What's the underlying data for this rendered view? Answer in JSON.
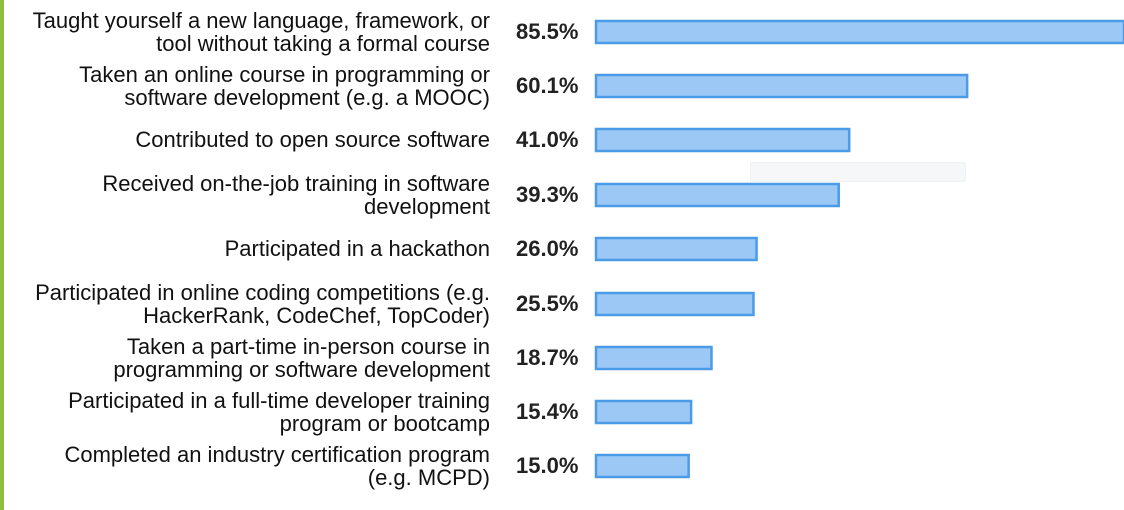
{
  "chart_data": {
    "type": "bar",
    "orientation": "horizontal",
    "value_suffix": "%",
    "xlim": [
      0,
      85.5
    ],
    "categories": [
      [
        "Taught yourself a new language, framework, or",
        "tool without taking a formal course"
      ],
      [
        "Taken an online course in programming or",
        "software development (e.g. a MOOC)"
      ],
      [
        "Contributed to open source software"
      ],
      [
        "Received on-the-job training in software",
        "development"
      ],
      [
        "Participated in a hackathon"
      ],
      [
        "Participated in online coding competitions (e.g.",
        "HackerRank, CodeChef, TopCoder)"
      ],
      [
        "Taken a part-time in-person course in",
        "programming or software development"
      ],
      [
        "Participated in a full-time developer training",
        "program or bootcamp"
      ],
      [
        "Completed an industry certification program",
        "(e.g. MCPD)"
      ]
    ],
    "values": [
      85.5,
      60.1,
      41.0,
      39.3,
      26.0,
      25.5,
      18.7,
      15.4,
      15.0
    ],
    "value_labels": [
      "85.5%",
      "60.1%",
      "41.0%",
      "39.3%",
      "26.0%",
      "25.5%",
      "18.7%",
      "15.4%",
      "15.0%"
    ],
    "colors": {
      "bar_fill": "#9cc8f6",
      "bar_stroke": "#4b9be6",
      "side_accent": "#8fbf3a"
    }
  }
}
